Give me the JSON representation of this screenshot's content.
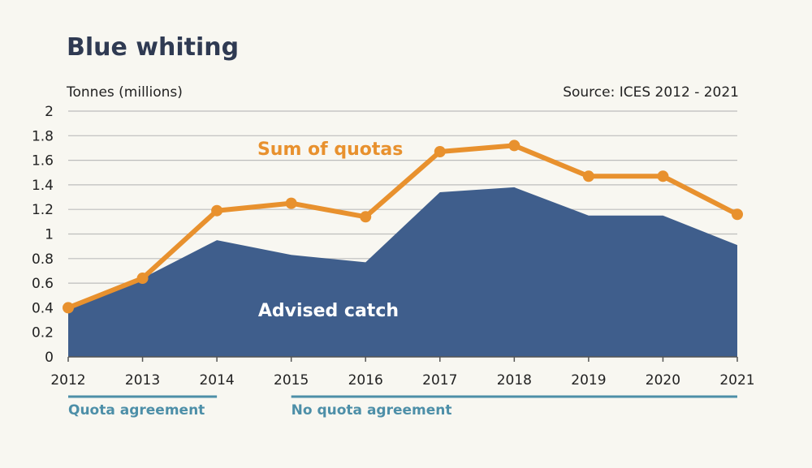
{
  "chart_data": {
    "type": "line",
    "title": "Blue whiting",
    "ylabel": "Tonnes (millions)",
    "source": "Source: ICES 2012 - 2021",
    "ylim": [
      0,
      2
    ],
    "yticks": [
      "0",
      "0.2",
      "0.4",
      "0.6",
      "0.8",
      "1",
      "1.2",
      "1.4",
      "1.6",
      "1.8",
      "2"
    ],
    "categories": [
      "2012",
      "2013",
      "2014",
      "2015",
      "2016",
      "2017",
      "2018",
      "2019",
      "2020",
      "2021"
    ],
    "series": [
      {
        "name": "Advised catch",
        "kind": "area",
        "color": "#3f5e8c",
        "label_color": "#ffffff",
        "values": [
          0.39,
          0.64,
          0.95,
          0.83,
          0.77,
          1.34,
          1.38,
          1.15,
          1.15,
          0.91
        ]
      },
      {
        "name": "Sum of quotas",
        "kind": "line",
        "color": "#e8912e",
        "label_color": "#e8912e",
        "values": [
          0.4,
          0.64,
          1.19,
          1.25,
          1.14,
          1.67,
          1.72,
          1.47,
          1.47,
          1.16
        ]
      }
    ],
    "periods": [
      {
        "label": "Quota agreement",
        "from": "2012",
        "to": "2014"
      },
      {
        "label": "No quota agreement",
        "from": "2015",
        "to": "2021"
      }
    ],
    "period_color": "#4d8fa8",
    "grid": true
  }
}
